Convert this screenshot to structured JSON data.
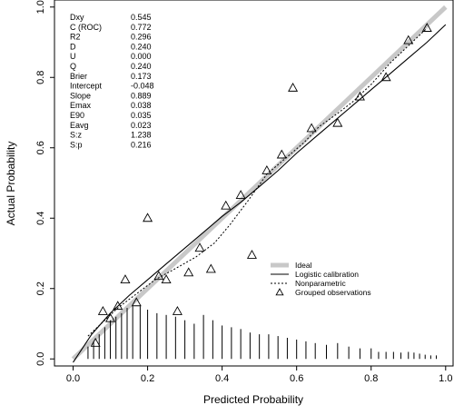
{
  "chart_data": {
    "type": "scatter",
    "xlabel": "Predicted Probability",
    "ylabel": "Actual Probability",
    "xlim": [
      -0.05,
      1.02
    ],
    "ylim": [
      -0.02,
      1.02
    ],
    "xticks": [
      "0.0",
      "0.2",
      "0.4",
      "0.6",
      "0.8",
      "1.0"
    ],
    "yticks": [
      "0.0",
      "0.2",
      "0.4",
      "0.6",
      "0.8",
      "1.0"
    ],
    "grid": false,
    "legend_position": "bottom-right",
    "legend": [
      {
        "label": "Ideal",
        "style": "thick-light-gray-line"
      },
      {
        "label": "Logistic calibration",
        "style": "solid-line"
      },
      {
        "label": "Nonparametric",
        "style": "dotted-line"
      },
      {
        "label": "Grouped observations",
        "style": "triangle"
      }
    ],
    "stats": [
      {
        "name": "Dxy",
        "value": "0.545"
      },
      {
        "name": "C (ROC)",
        "value": "0.772"
      },
      {
        "name": "R2",
        "value": "0.296"
      },
      {
        "name": "D",
        "value": "0.240"
      },
      {
        "name": "U",
        "value": "0.000"
      },
      {
        "name": "Q",
        "value": "0.240"
      },
      {
        "name": "Brier",
        "value": "0.173"
      },
      {
        "name": "Intercept",
        "value": "-0.048"
      },
      {
        "name": "Slope",
        "value": "0.889"
      },
      {
        "name": "Emax",
        "value": "0.038"
      },
      {
        "name": "E90",
        "value": "0.035"
      },
      {
        "name": "Eavg",
        "value": "0.023"
      },
      {
        "name": "S:z",
        "value": "1.238"
      },
      {
        "name": "S:p",
        "value": "0.216"
      }
    ],
    "ideal": {
      "x": [
        0,
        1
      ],
      "y": [
        0,
        1
      ],
      "color": "#c8c8c8"
    },
    "logistic_calibration": {
      "x": [
        0.0,
        0.05,
        0.1,
        0.15,
        0.2,
        0.25,
        0.3,
        0.35,
        0.4,
        0.45,
        0.5,
        0.55,
        0.6,
        0.65,
        0.7,
        0.75,
        0.8,
        0.85,
        0.9,
        0.95,
        1.0
      ],
      "y": [
        -0.01,
        0.07,
        0.13,
        0.18,
        0.225,
        0.27,
        0.315,
        0.36,
        0.405,
        0.445,
        0.49,
        0.535,
        0.585,
        0.63,
        0.675,
        0.72,
        0.765,
        0.81,
        0.855,
        0.9,
        0.95
      ]
    },
    "nonparametric": {
      "x": [
        0.04,
        0.08,
        0.12,
        0.17,
        0.22,
        0.28,
        0.33,
        0.38,
        0.42,
        0.47,
        0.52,
        0.57,
        0.62,
        0.66,
        0.7,
        0.75,
        0.8,
        0.85,
        0.9,
        0.95
      ],
      "y": [
        0.065,
        0.105,
        0.145,
        0.185,
        0.225,
        0.26,
        0.29,
        0.33,
        0.38,
        0.45,
        0.525,
        0.57,
        0.615,
        0.66,
        0.69,
        0.73,
        0.78,
        0.84,
        0.89,
        0.94
      ]
    },
    "grouped_observations": {
      "x": [
        0.06,
        0.08,
        0.1,
        0.12,
        0.14,
        0.17,
        0.2,
        0.23,
        0.25,
        0.28,
        0.31,
        0.34,
        0.37,
        0.41,
        0.45,
        0.48,
        0.52,
        0.56,
        0.59,
        0.64,
        0.71,
        0.77,
        0.84,
        0.9,
        0.95
      ],
      "y": [
        0.045,
        0.135,
        0.115,
        0.15,
        0.225,
        0.16,
        0.4,
        0.235,
        0.225,
        0.135,
        0.245,
        0.315,
        0.255,
        0.435,
        0.465,
        0.295,
        0.535,
        0.58,
        0.77,
        0.655,
        0.67,
        0.745,
        0.8,
        0.905,
        0.94
      ]
    },
    "distribution_spikes": {
      "x": [
        0.04,
        0.055,
        0.07,
        0.085,
        0.1,
        0.115,
        0.13,
        0.145,
        0.16,
        0.18,
        0.2,
        0.225,
        0.25,
        0.275,
        0.3,
        0.325,
        0.35,
        0.375,
        0.4,
        0.425,
        0.45,
        0.475,
        0.5,
        0.525,
        0.55,
        0.575,
        0.6,
        0.625,
        0.65,
        0.68,
        0.71,
        0.74,
        0.77,
        0.8,
        0.82,
        0.84,
        0.86,
        0.88,
        0.9,
        0.915,
        0.93,
        0.945,
        0.96,
        0.975
      ],
      "height": [
        0.035,
        0.05,
        0.07,
        0.09,
        0.11,
        0.12,
        0.13,
        0.145,
        0.15,
        0.15,
        0.14,
        0.13,
        0.125,
        0.12,
        0.11,
        0.1,
        0.125,
        0.11,
        0.095,
        0.09,
        0.085,
        0.075,
        0.07,
        0.07,
        0.065,
        0.06,
        0.055,
        0.05,
        0.045,
        0.04,
        0.045,
        0.035,
        0.03,
        0.03,
        0.02,
        0.02,
        0.02,
        0.018,
        0.02,
        0.018,
        0.015,
        0.012,
        0.01,
        0.01
      ]
    }
  }
}
